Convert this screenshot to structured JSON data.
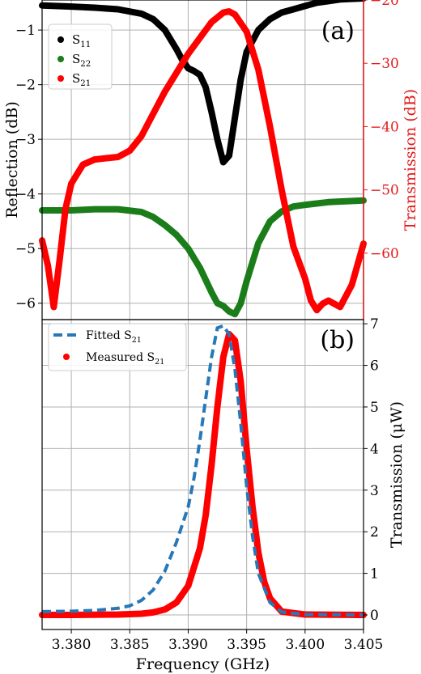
{
  "chart_data": [
    {
      "type": "line",
      "panel_label": "(a)",
      "ylabel_left": "Reflection (dB)",
      "ylabel_right": "Transmission (dB)",
      "ylim_left": [
        -6.3,
        -0.45
      ],
      "ylim_right": [
        -70.5,
        -20
      ],
      "yticks_left": [
        -1,
        -2,
        -3,
        -4,
        -5,
        -6
      ],
      "yticks_right": [
        -20,
        -30,
        -40,
        -50,
        -60
      ],
      "grid": true,
      "legend_position": "top-left",
      "right_axis_color": "#e41a1c",
      "series": [
        {
          "name": "S11",
          "sub": "11",
          "color": "#000000",
          "axis": "left",
          "x": [
            3.3775,
            3.38,
            3.382,
            3.384,
            3.386,
            3.387,
            3.388,
            3.389,
            3.3895,
            3.39,
            3.3905,
            3.391,
            3.3915,
            3.392,
            3.3925,
            3.393,
            3.3935,
            3.394,
            3.3945,
            3.395,
            3.396,
            3.397,
            3.398,
            3.399,
            3.4,
            3.401,
            3.402,
            3.403,
            3.405
          ],
          "y": [
            -0.55,
            -0.57,
            -0.59,
            -0.62,
            -0.7,
            -0.8,
            -1.0,
            -1.35,
            -1.55,
            -1.7,
            -1.75,
            -1.82,
            -2.05,
            -2.5,
            -3.0,
            -3.42,
            -3.3,
            -2.6,
            -1.9,
            -1.4,
            -1.0,
            -0.8,
            -0.68,
            -0.62,
            -0.56,
            -0.5,
            -0.47,
            -0.44,
            -0.42
          ]
        },
        {
          "name": "S22",
          "sub": "22",
          "color": "#1a7d1a",
          "axis": "left",
          "x": [
            3.3775,
            3.38,
            3.382,
            3.384,
            3.386,
            3.387,
            3.388,
            3.389,
            3.39,
            3.391,
            3.392,
            3.3925,
            3.393,
            3.3935,
            3.394,
            3.3945,
            3.395,
            3.396,
            3.397,
            3.398,
            3.399,
            3.4,
            3.402,
            3.405
          ],
          "y": [
            -4.3,
            -4.3,
            -4.28,
            -4.28,
            -4.33,
            -4.42,
            -4.57,
            -4.75,
            -5.0,
            -5.35,
            -5.8,
            -6.0,
            -6.05,
            -6.15,
            -6.2,
            -6.0,
            -5.6,
            -4.9,
            -4.5,
            -4.32,
            -4.23,
            -4.2,
            -4.15,
            -4.12
          ]
        },
        {
          "name": "S21",
          "sub": "21",
          "color": "#ff0000",
          "axis": "right",
          "x": [
            3.3775,
            3.378,
            3.3785,
            3.379,
            3.3795,
            3.38,
            3.381,
            3.382,
            3.383,
            3.384,
            3.385,
            3.386,
            3.387,
            3.388,
            3.389,
            3.39,
            3.391,
            3.392,
            3.393,
            3.3935,
            3.394,
            3.395,
            3.396,
            3.397,
            3.398,
            3.399,
            3.4,
            3.4005,
            3.401,
            3.4015,
            3.402,
            3.403,
            3.404,
            3.405
          ],
          "y": [
            -58.0,
            -62.0,
            -68.5,
            -61.0,
            -53.0,
            -49.0,
            -46.0,
            -45.2,
            -45.0,
            -44.8,
            -43.8,
            -41.5,
            -38.0,
            -34.5,
            -31.5,
            -28.5,
            -26.0,
            -23.5,
            -22.0,
            -21.8,
            -22.3,
            -25.0,
            -31.0,
            -40.0,
            -50.0,
            -59.0,
            -64.0,
            -67.5,
            -69.0,
            -68.0,
            -67.5,
            -68.5,
            -65.0,
            -58.5
          ]
        }
      ]
    },
    {
      "type": "line",
      "panel_label": "(b)",
      "xlabel": "Frequency (GHz)",
      "ylabel_right": "Transmission (μW)",
      "xlim": [
        3.3775,
        3.405
      ],
      "ylim": [
        -0.35,
        7.1
      ],
      "xticks": [
        "3.380",
        "3.385",
        "3.390",
        "3.395",
        "3.400",
        "3.405"
      ],
      "yticks": [
        0,
        1,
        2,
        3,
        4,
        5,
        6,
        7
      ],
      "grid": true,
      "legend_position": "top-left",
      "series": [
        {
          "name": "Fitted S21",
          "sub": "21",
          "color": "#2878b8",
          "style": "dashed",
          "x": [
            3.3775,
            3.38,
            3.382,
            3.384,
            3.385,
            3.386,
            3.387,
            3.388,
            3.389,
            3.39,
            3.3905,
            3.391,
            3.3915,
            3.392,
            3.3925,
            3.393,
            3.3935,
            3.394,
            3.3945,
            3.395,
            3.3955,
            3.396,
            3.397,
            3.398,
            3.4,
            3.405
          ],
          "y": [
            0.08,
            0.09,
            0.11,
            0.16,
            0.22,
            0.35,
            0.6,
            1.05,
            1.75,
            2.6,
            3.3,
            4.2,
            5.2,
            6.2,
            6.9,
            6.95,
            6.75,
            5.9,
            4.6,
            3.1,
            1.9,
            1.0,
            0.3,
            0.07,
            0.01,
            0.0
          ]
        },
        {
          "name": "Measured S21",
          "sub": "21",
          "color": "#ff0000",
          "style": "markers",
          "x": [
            3.3775,
            3.38,
            3.384,
            3.386,
            3.387,
            3.388,
            3.389,
            3.39,
            3.391,
            3.3915,
            3.392,
            3.3925,
            3.393,
            3.3935,
            3.394,
            3.3945,
            3.395,
            3.3955,
            3.396,
            3.3965,
            3.397,
            3.398,
            3.4,
            3.405
          ],
          "y": [
            0.0,
            0.0,
            0.01,
            0.03,
            0.06,
            0.13,
            0.3,
            0.7,
            1.6,
            2.4,
            3.6,
            5.0,
            6.2,
            6.75,
            6.6,
            5.6,
            4.0,
            2.6,
            1.5,
            0.8,
            0.4,
            0.08,
            0.01,
            0.0
          ]
        }
      ]
    }
  ]
}
